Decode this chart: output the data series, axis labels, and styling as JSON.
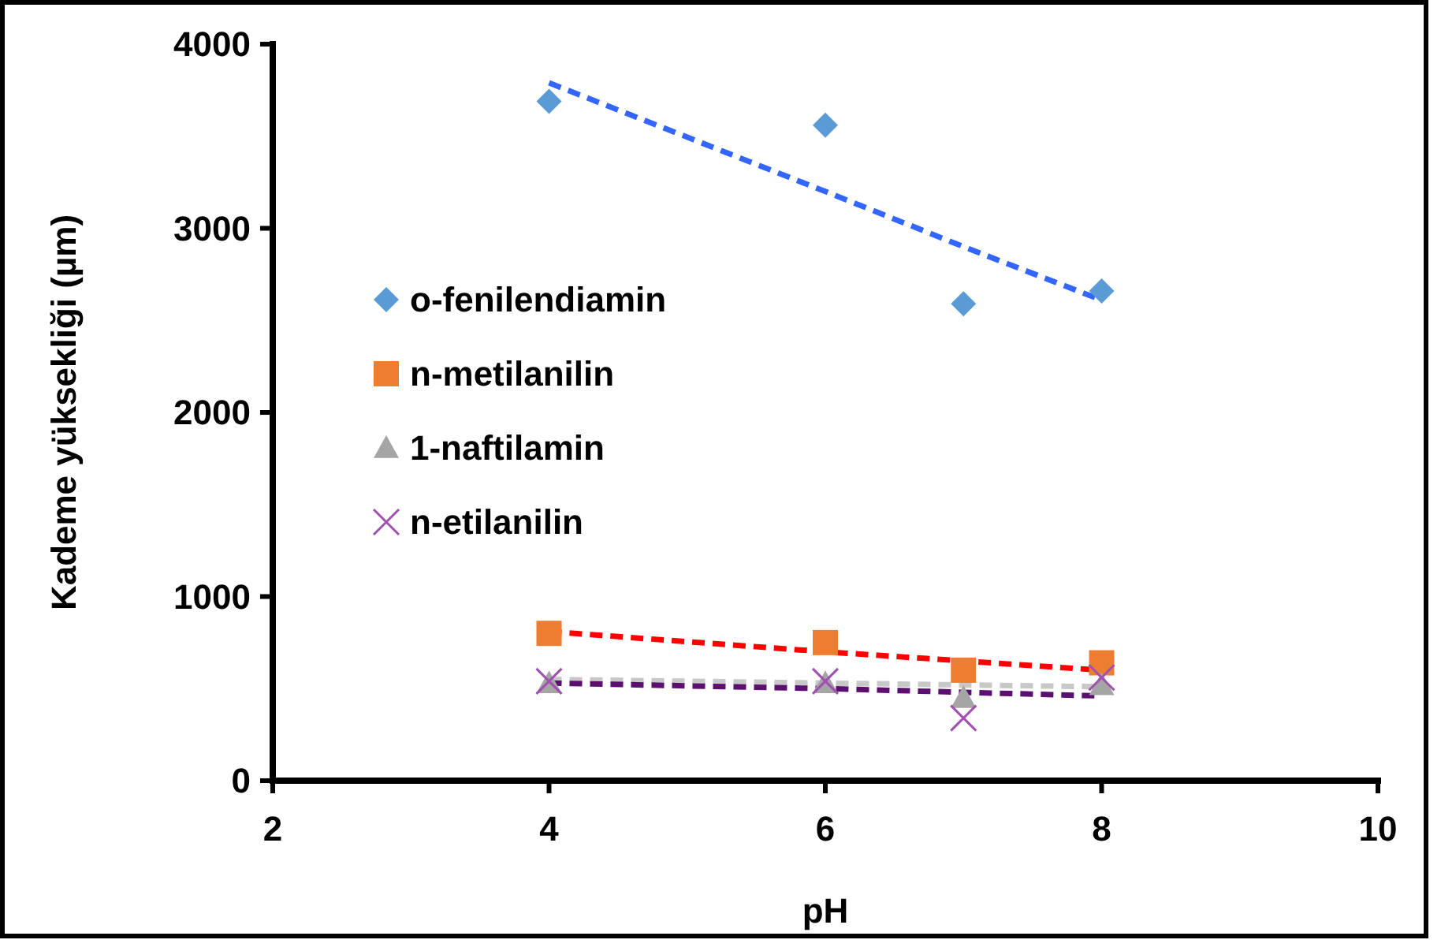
{
  "chart_data": {
    "type": "scatter",
    "xlabel": "pH",
    "ylabel": "Kademe yüksekliği (µm)",
    "xlim": [
      2,
      10
    ],
    "xticks": [
      2,
      4,
      6,
      8,
      10
    ],
    "ylim": [
      0,
      4000
    ],
    "yticks": [
      0,
      1000,
      2000,
      3000,
      4000
    ],
    "grid": false,
    "legend": "left",
    "x": [
      4,
      6,
      7,
      8
    ],
    "series": [
      {
        "name": "o-fenilendiamin",
        "color": "#5b9bd5",
        "marker": "diamond",
        "values": [
          3690,
          3560,
          2590,
          2660
        ]
      },
      {
        "name": "n-metilanilin",
        "color": "#ed7d31",
        "marker": "square",
        "values": [
          800,
          750,
          600,
          640
        ]
      },
      {
        "name": "1-naftilamin",
        "color": "#a5a5a5",
        "marker": "triangle",
        "values": [
          530,
          530,
          450,
          520
        ]
      },
      {
        "name": "n-etilanilin",
        "color": "#a050b0",
        "marker": "cross",
        "values": [
          540,
          540,
          340,
          560
        ]
      },
      {
        "type": "line",
        "color": "#3366ff",
        "marker": "none",
        "line_style": "dashed",
        "values": [
          3790,
          3200,
          2900,
          2610
        ]
      },
      {
        "type": "line",
        "color": "#ff0000",
        "marker": "none",
        "line_style": "dashed",
        "values": [
          810,
          700,
          650,
          600
        ]
      },
      {
        "type": "line",
        "color": "#c8c8c8",
        "marker": "none",
        "line_style": "dashed",
        "values": [
          550,
          530,
          520,
          510
        ]
      },
      {
        "type": "line",
        "color": "#5b0f6e",
        "marker": "none",
        "line_style": "dashed",
        "values": [
          530,
          500,
          480,
          460
        ]
      }
    ]
  }
}
